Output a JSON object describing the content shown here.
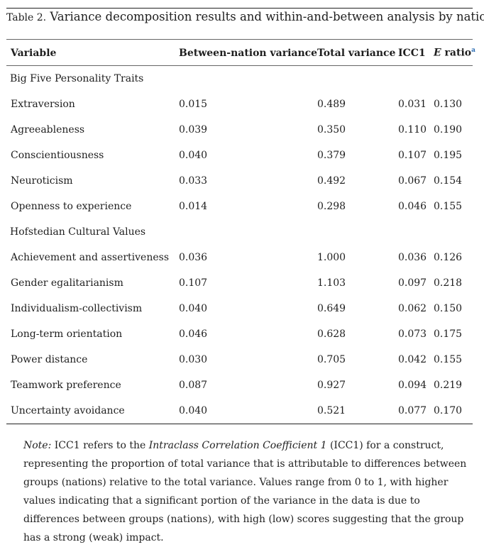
{
  "caption": {
    "label": "Table 2.",
    "text": " Variance decomposition results and within-and-between analysis by nation."
  },
  "headers": {
    "variable": "Variable",
    "between": "Between-nation variance",
    "total": "Total variance",
    "icc1": "ICC1",
    "eratio_letter": "E",
    "eratio_word": " ratio",
    "eratio_footnote": "a"
  },
  "sections": [
    {
      "title": "Big Five Personality Traits",
      "rows": [
        {
          "variable": "Extraversion",
          "between": "0.015",
          "total": "0.489",
          "icc1": "0.031",
          "e_ratio": "0.130"
        },
        {
          "variable": "Agreeableness",
          "between": "0.039",
          "total": "0.350",
          "icc1": "0.110",
          "e_ratio": "0.190"
        },
        {
          "variable": "Conscientiousness",
          "between": "0.040",
          "total": "0.379",
          "icc1": "0.107",
          "e_ratio": "0.195"
        },
        {
          "variable": "Neuroticism",
          "between": "0.033",
          "total": "0.492",
          "icc1": "0.067",
          "e_ratio": "0.154"
        },
        {
          "variable": "Openness to experience",
          "between": "0.014",
          "total": "0.298",
          "icc1": "0.046",
          "e_ratio": "0.155"
        }
      ]
    },
    {
      "title": "Hofstedian Cultural Values",
      "rows": [
        {
          "variable": "Achievement and assertiveness",
          "between": "0.036",
          "total": "1.000",
          "icc1": "0.036",
          "e_ratio": "0.126"
        },
        {
          "variable": "Gender egalitarianism",
          "between": "0.107",
          "total": "1.103",
          "icc1": "0.097",
          "e_ratio": "0.218"
        },
        {
          "variable": "Individualism-collectivism",
          "between": "0.040",
          "total": "0.649",
          "icc1": "0.062",
          "e_ratio": "0.150"
        },
        {
          "variable": "Long-term orientation",
          "between": "0.046",
          "total": "0.628",
          "icc1": "0.073",
          "e_ratio": "0.175"
        },
        {
          "variable": "Power distance",
          "between": "0.030",
          "total": "0.705",
          "icc1": "0.042",
          "e_ratio": "0.155"
        },
        {
          "variable": "Teamwork preference",
          "between": "0.087",
          "total": "0.927",
          "icc1": "0.094",
          "e_ratio": "0.219"
        },
        {
          "variable": "Uncertainty avoidance",
          "between": "0.040",
          "total": "0.521",
          "icc1": "0.077",
          "e_ratio": "0.170"
        }
      ]
    }
  ],
  "note": {
    "lead": "Note:",
    "part1": " ICC1 refers to the ",
    "term": "Intraclass Correlation Coefficient 1",
    "part2": " (ICC1) for a construct, representing the proportion of total variance that is attributable to differences between groups (nations) relative to the total variance. Values range from 0 to 1, with higher values indicating that a significant portion of the variance in the data is due to differences between groups (nations), with high (low) scores suggesting that the group has a strong (weak) impact."
  },
  "colors": {
    "text": "#1e1e1e",
    "rule": "#222222",
    "footnote_link": "#2e6fb5"
  }
}
